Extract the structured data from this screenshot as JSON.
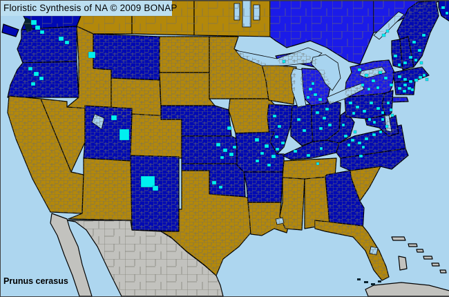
{
  "header": {
    "title": "Floristic Synthesis of NA © 2009 BONAP"
  },
  "footer": {
    "species": "Prunus cerasus"
  },
  "palette": {
    "ocean": "#ADD6EF",
    "label_background": "#BCDFF1",
    "text": "#000000",
    "state_present": "#0009B4",
    "state_present_bright": "#1B1BE8",
    "state_absent": "#B3880A",
    "outside_flora_area": "#C2C2BE",
    "lake_water": "#A8D4F0",
    "county_record": "#00F0F0",
    "county_line": "#6F6F66",
    "state_border": "#000000",
    "coastline": "#06222E"
  },
  "map": {
    "regions": [
      {
        "id": "bc",
        "name": "British Columbia",
        "status": "state_present",
        "subdivisions": "sparse"
      },
      {
        "id": "ab",
        "name": "Alberta",
        "status": "state_absent",
        "subdivisions": "sparse"
      },
      {
        "id": "sk",
        "name": "Saskatchewan",
        "status": "state_absent",
        "subdivisions": "sparse"
      },
      {
        "id": "mb",
        "name": "Manitoba",
        "status": "state_absent",
        "subdivisions": "sparse"
      },
      {
        "id": "on",
        "name": "Ontario",
        "status": "state_present_bright",
        "subdivisions": "sparse"
      },
      {
        "id": "qc",
        "name": "Quebec",
        "status": "state_present_bright",
        "subdivisions": "sparse"
      },
      {
        "id": "nb",
        "name": "New Brunswick",
        "status": "state_present",
        "subdivisions": "sparse"
      },
      {
        "id": "mexico",
        "name": "Mexico",
        "status": "outside_flora_area",
        "subdivisions": "sparse"
      },
      {
        "id": "baja",
        "name": "Baja California",
        "status": "outside_flora_area",
        "subdivisions": "none"
      },
      {
        "id": "cuba",
        "name": "Cuba",
        "status": "outside_flora_area",
        "subdivisions": "none"
      },
      {
        "id": "bahamas",
        "name": "Bahamas",
        "status": "outside_flora_area",
        "subdivisions": "none"
      },
      {
        "id": "wa",
        "name": "Washington",
        "status": "state_present",
        "subdivisions": "counties"
      },
      {
        "id": "or",
        "name": "Oregon",
        "status": "state_present",
        "subdivisions": "counties"
      },
      {
        "id": "ca",
        "name": "California",
        "status": "state_absent",
        "subdivisions": "counties"
      },
      {
        "id": "nv",
        "name": "Nevada",
        "status": "state_absent",
        "subdivisions": "counties"
      },
      {
        "id": "id",
        "name": "Idaho",
        "status": "state_absent",
        "subdivisions": "counties"
      },
      {
        "id": "mt",
        "name": "Montana",
        "status": "state_present",
        "subdivisions": "counties"
      },
      {
        "id": "wy",
        "name": "Wyoming",
        "status": "state_absent",
        "subdivisions": "counties"
      },
      {
        "id": "ut",
        "name": "Utah",
        "status": "state_present",
        "subdivisions": "counties"
      },
      {
        "id": "co",
        "name": "Colorado",
        "status": "state_absent",
        "subdivisions": "counties"
      },
      {
        "id": "az",
        "name": "Arizona",
        "status": "state_absent",
        "subdivisions": "counties"
      },
      {
        "id": "nm",
        "name": "New Mexico",
        "status": "state_present",
        "subdivisions": "counties"
      },
      {
        "id": "nd",
        "name": "North Dakota",
        "status": "state_absent",
        "subdivisions": "counties"
      },
      {
        "id": "sd",
        "name": "South Dakota",
        "status": "state_absent",
        "subdivisions": "counties"
      },
      {
        "id": "ne",
        "name": "Nebraska",
        "status": "state_present",
        "subdivisions": "counties"
      },
      {
        "id": "ks",
        "name": "Kansas",
        "status": "state_present",
        "subdivisions": "counties"
      },
      {
        "id": "ok",
        "name": "Oklahoma",
        "status": "state_present",
        "subdivisions": "counties"
      },
      {
        "id": "tx",
        "name": "Texas",
        "status": "state_absent",
        "subdivisions": "counties"
      },
      {
        "id": "mn",
        "name": "Minnesota",
        "status": "state_absent",
        "subdivisions": "counties"
      },
      {
        "id": "ia",
        "name": "Iowa",
        "status": "state_absent",
        "subdivisions": "counties"
      },
      {
        "id": "wi",
        "name": "Wisconsin",
        "status": "state_absent",
        "subdivisions": "counties"
      },
      {
        "id": "il",
        "name": "Illinois",
        "status": "state_present",
        "subdivisions": "counties"
      },
      {
        "id": "in",
        "name": "Indiana",
        "status": "state_present",
        "subdivisions": "counties"
      },
      {
        "id": "oh",
        "name": "Ohio",
        "status": "state_present",
        "subdivisions": "counties"
      },
      {
        "id": "mi",
        "name": "Michigan",
        "status": "state_present_bright",
        "subdivisions": "counties"
      },
      {
        "id": "mo",
        "name": "Missouri",
        "status": "state_present",
        "subdivisions": "counties"
      },
      {
        "id": "ar",
        "name": "Arkansas",
        "status": "state_present",
        "subdivisions": "counties"
      },
      {
        "id": "la",
        "name": "Louisiana",
        "status": "state_absent",
        "subdivisions": "counties"
      },
      {
        "id": "ms",
        "name": "Mississippi",
        "status": "state_absent",
        "subdivisions": "counties"
      },
      {
        "id": "al",
        "name": "Alabama",
        "status": "state_absent",
        "subdivisions": "counties"
      },
      {
        "id": "tn",
        "name": "Tennessee",
        "status": "state_absent",
        "subdivisions": "counties"
      },
      {
        "id": "ky",
        "name": "Kentucky",
        "status": "state_present",
        "subdivisions": "counties"
      },
      {
        "id": "ga",
        "name": "Georgia",
        "status": "state_present",
        "subdivisions": "counties"
      },
      {
        "id": "sc",
        "name": "South Carolina",
        "status": "state_absent",
        "subdivisions": "counties"
      },
      {
        "id": "fl",
        "name": "Florida",
        "status": "state_absent",
        "subdivisions": "counties"
      },
      {
        "id": "nc",
        "name": "North Carolina",
        "status": "state_present",
        "subdivisions": "counties"
      },
      {
        "id": "va",
        "name": "Virginia",
        "status": "state_present",
        "subdivisions": "counties"
      },
      {
        "id": "wv",
        "name": "West Virginia",
        "status": "state_present",
        "subdivisions": "counties"
      },
      {
        "id": "pa",
        "name": "Pennsylvania",
        "status": "state_present",
        "subdivisions": "counties"
      },
      {
        "id": "ny",
        "name": "New York",
        "status": "state_present_bright",
        "subdivisions": "counties"
      },
      {
        "id": "nj",
        "name": "New Jersey",
        "status": "state_present",
        "subdivisions": "counties"
      },
      {
        "id": "md",
        "name": "Maryland-Delaware",
        "status": "state_present",
        "subdivisions": "counties"
      },
      {
        "id": "vt",
        "name": "Vermont",
        "status": "state_present",
        "subdivisions": "counties"
      },
      {
        "id": "nh",
        "name": "New Hampshire",
        "status": "state_present",
        "subdivisions": "counties"
      },
      {
        "id": "ma",
        "name": "Massachusetts",
        "status": "state_present",
        "subdivisions": "counties"
      },
      {
        "id": "ctri",
        "name": "Connecticut-Rhode Island",
        "status": "state_present",
        "subdivisions": "counties"
      },
      {
        "id": "me",
        "name": "Maine",
        "status": "state_present",
        "subdivisions": "counties"
      },
      {
        "id": "vancouver-island",
        "name": "Vancouver Island",
        "status": "state_present",
        "subdivisions": "none"
      },
      {
        "id": "puget-sound",
        "name": "Puget Sound",
        "status": "coastline",
        "subdivisions": "none"
      },
      {
        "id": "lake-superior",
        "name": "Lake Superior",
        "status": "water",
        "subdivisions": "none"
      },
      {
        "id": "lake-michigan",
        "name": "Lake Michigan",
        "status": "water",
        "subdivisions": "none"
      },
      {
        "id": "lake-huron",
        "name": "Lake Huron",
        "status": "water",
        "subdivisions": "none"
      },
      {
        "id": "lake-erie",
        "name": "Lake Erie",
        "status": "water",
        "subdivisions": "none"
      },
      {
        "id": "lake-ontario",
        "name": "Lake Ontario",
        "status": "water",
        "subdivisions": "none"
      },
      {
        "id": "st-lawrence",
        "name": "St. Lawrence River",
        "status": "water",
        "subdivisions": "none"
      },
      {
        "id": "manitoba-lakes",
        "name": "Manitoba Lakes",
        "status": "water",
        "subdivisions": "none"
      },
      {
        "id": "great-salt-lake",
        "name": "Great Salt Lake",
        "status": "water",
        "subdivisions": "none"
      },
      {
        "id": "chesapeake-bay",
        "name": "Chesapeake Bay",
        "status": "water",
        "subdivisions": "none"
      },
      {
        "id": "lake-okeechobee",
        "name": "Lake Okeechobee",
        "status": "water",
        "subdivisions": "none"
      },
      {
        "id": "lake-pontchartrain",
        "name": "Lake Pontchartrain",
        "status": "water",
        "subdivisions": "none"
      },
      {
        "id": "florida-keys",
        "name": "Florida Keys",
        "status": "coastline",
        "subdivisions": "none"
      }
    ],
    "county_record_markers": [
      [
        44,
        28,
        8,
        7
      ],
      [
        50,
        36,
        7,
        6
      ],
      [
        57,
        43,
        6,
        5
      ],
      [
        84,
        52,
        7,
        6
      ],
      [
        93,
        58,
        6,
        5
      ],
      [
        40,
        96,
        6,
        5
      ],
      [
        48,
        103,
        7,
        6
      ],
      [
        56,
        110,
        6,
        5
      ],
      [
        44,
        118,
        6,
        5
      ],
      [
        127,
        74,
        10,
        9
      ],
      [
        160,
        166,
        8,
        7
      ],
      [
        172,
        186,
        14,
        16
      ],
      [
        203,
        254,
        20,
        16
      ],
      [
        220,
        268,
        8,
        7
      ],
      [
        328,
        182,
        6,
        5
      ],
      [
        312,
        206,
        6,
        5
      ],
      [
        322,
        214,
        6,
        5
      ],
      [
        331,
        220,
        6,
        5
      ],
      [
        318,
        225,
        5,
        4
      ],
      [
        336,
        210,
        5,
        4
      ],
      [
        306,
        261,
        6,
        5
      ],
      [
        316,
        268,
        5,
        4
      ],
      [
        368,
        199,
        6,
        5
      ],
      [
        382,
        208,
        6,
        5
      ],
      [
        376,
        219,
        5,
        4
      ],
      [
        392,
        223,
        6,
        5
      ],
      [
        369,
        230,
        5,
        4
      ],
      [
        386,
        236,
        5,
        4
      ],
      [
        398,
        213,
        5,
        4
      ],
      [
        394,
        165,
        5,
        4
      ],
      [
        401,
        180,
        5,
        4
      ],
      [
        397,
        195,
        5,
        4
      ],
      [
        406,
        204,
        5,
        4
      ],
      [
        429,
        170,
        5,
        4
      ],
      [
        437,
        186,
        5,
        4
      ],
      [
        456,
        160,
        5,
        4
      ],
      [
        466,
        168,
        5,
        4
      ],
      [
        474,
        178,
        5,
        4
      ],
      [
        461,
        183,
        5,
        4
      ],
      [
        470,
        155,
        5,
        4
      ],
      [
        446,
        126,
        5,
        4
      ],
      [
        453,
        134,
        5,
        4
      ],
      [
        460,
        141,
        5,
        4
      ],
      [
        443,
        138,
        4,
        4
      ],
      [
        450,
        118,
        4,
        4
      ],
      [
        408,
        86,
        4,
        4
      ],
      [
        424,
        216,
        5,
        4
      ],
      [
        443,
        222,
        5,
        4
      ],
      [
        462,
        212,
        4,
        4
      ],
      [
        457,
        234,
        4,
        4
      ],
      [
        497,
        194,
        5,
        4
      ],
      [
        507,
        200,
        5,
        4
      ],
      [
        517,
        204,
        5,
        4
      ],
      [
        527,
        198,
        5,
        4
      ],
      [
        538,
        192,
        5,
        4
      ],
      [
        511,
        188,
        4,
        4
      ],
      [
        523,
        210,
        4,
        4
      ],
      [
        548,
        188,
        4,
        4
      ],
      [
        502,
        207,
        4,
        4
      ],
      [
        519,
        223,
        5,
        4
      ],
      [
        494,
        178,
        4,
        4
      ],
      [
        504,
        146,
        5,
        4
      ],
      [
        514,
        152,
        5,
        4
      ],
      [
        524,
        158,
        5,
        4
      ],
      [
        534,
        146,
        5,
        4
      ],
      [
        544,
        154,
        5,
        4
      ],
      [
        509,
        161,
        4,
        4
      ],
      [
        551,
        160,
        4,
        4
      ],
      [
        517,
        98,
        5,
        4
      ],
      [
        527,
        106,
        5,
        4
      ],
      [
        537,
        114,
        5,
        4
      ],
      [
        547,
        102,
        5,
        4
      ],
      [
        555,
        110,
        5,
        4
      ],
      [
        563,
        120,
        5,
        4
      ],
      [
        544,
        124,
        4,
        4
      ],
      [
        531,
        126,
        4,
        4
      ],
      [
        522,
        120,
        4,
        4
      ],
      [
        559,
        146,
        4,
        4
      ],
      [
        563,
        156,
        4,
        4
      ],
      [
        565,
        164,
        4,
        4
      ],
      [
        539,
        174,
        4,
        4
      ],
      [
        551,
        170,
        4,
        4
      ],
      [
        557,
        180,
        4,
        4
      ],
      [
        532,
        170,
        4,
        4
      ],
      [
        569,
        78,
        5,
        4
      ],
      [
        583,
        88,
        5,
        4
      ],
      [
        575,
        91,
        4,
        4
      ],
      [
        575,
        108,
        5,
        4
      ],
      [
        583,
        112,
        5,
        4
      ],
      [
        591,
        115,
        5,
        4
      ],
      [
        599,
        113,
        5,
        4
      ],
      [
        605,
        109,
        5,
        4
      ],
      [
        583,
        120,
        5,
        4
      ],
      [
        575,
        125,
        5,
        4
      ],
      [
        582,
        129,
        5,
        4
      ],
      [
        589,
        125,
        5,
        4
      ],
      [
        594,
        127,
        4,
        4
      ],
      [
        611,
        106,
        4,
        4
      ],
      [
        615,
        112,
        4,
        4
      ],
      [
        596,
        58,
        5,
        4
      ],
      [
        604,
        70,
        5,
        4
      ],
      [
        591,
        80,
        5,
        4
      ],
      [
        610,
        48,
        5,
        4
      ],
      [
        599,
        84,
        4,
        4
      ],
      [
        607,
        88,
        4,
        4
      ],
      [
        552,
        48,
        5,
        4
      ],
      [
        558,
        42,
        4,
        4
      ],
      [
        638,
        8,
        5,
        4
      ],
      [
        644,
        16,
        4,
        4
      ]
    ]
  }
}
